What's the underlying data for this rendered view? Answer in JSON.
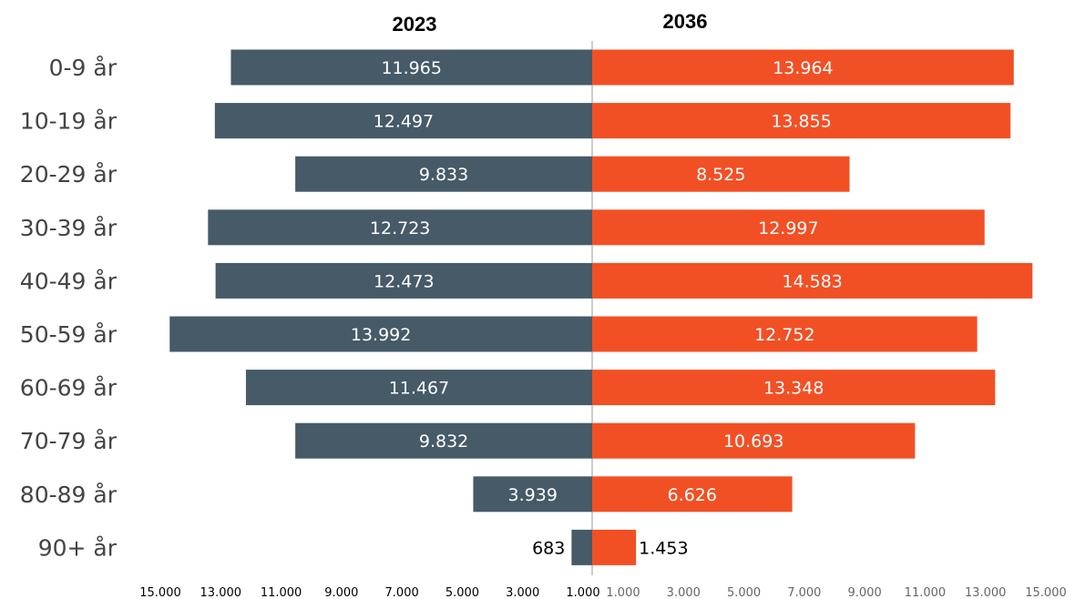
{
  "chart_data": {
    "type": "bar",
    "orientation": "horizontal-butterfly",
    "categories": [
      "0-9 år",
      "10-19 år",
      "20-29 år",
      "30-39 år",
      "40-49 år",
      "50-59 år",
      "60-69 år",
      "70-79 år",
      "80-89 år",
      "90+ år"
    ],
    "series": [
      {
        "name": "2023",
        "side": "left",
        "color": "#465a68",
        "values": [
          11965,
          12497,
          9833,
          12723,
          12473,
          13992,
          11467,
          9832,
          3939,
          683
        ],
        "labels": [
          "11.965",
          "12.497",
          "9.833",
          "12.723",
          "12.473",
          "13.992",
          "11.467",
          "9.832",
          "3.939",
          "683"
        ]
      },
      {
        "name": "2036",
        "side": "right",
        "color": "#f15025",
        "values": [
          13964,
          13855,
          8525,
          12997,
          14583,
          12752,
          13348,
          10693,
          6626,
          1453
        ],
        "labels": [
          "13.964",
          "13.855",
          "8.525",
          "12.997",
          "14.583",
          "12.752",
          "13.348",
          "10.693",
          "6.626",
          "1.453"
        ]
      }
    ],
    "left_ticks": [
      "15.000",
      "13.000",
      "11.000",
      "9.000",
      "7.000",
      "5.000",
      "3.000",
      "1.000"
    ],
    "left_tick_values": [
      15000,
      13000,
      11000,
      9000,
      7000,
      5000,
      3000,
      1000
    ],
    "right_ticks": [
      "1.000",
      "3.000",
      "5.000",
      "7.000",
      "9.000",
      "11.000",
      "13.000",
      "15.000"
    ],
    "right_tick_values": [
      1000,
      3000,
      5000,
      7000,
      9000,
      11000,
      13000,
      15000
    ],
    "xlim": [
      0,
      15000
    ],
    "grid": false,
    "center_line_color": "#bbbbbb",
    "left_tick_color": "#000000",
    "right_tick_color": "#666666",
    "category_label_color": "#444444",
    "value_label_color_inside": "#ffffff",
    "value_label_color_outside": "#000000"
  }
}
